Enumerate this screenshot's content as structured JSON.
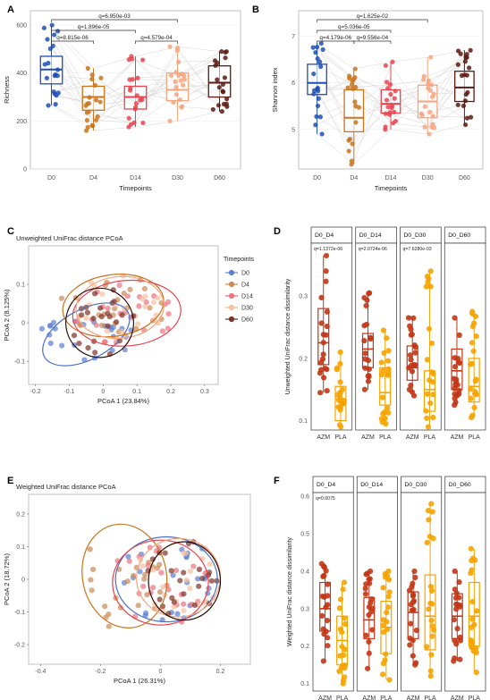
{
  "chart_data": [
    {
      "panel": "A",
      "type": "box",
      "xlabel": "Timepoints",
      "ylabel": "Richness",
      "categories": [
        "D0",
        "D4",
        "D14",
        "D30",
        "D60"
      ],
      "colors": [
        "#1f4fb5",
        "#c9741e",
        "#e8444f",
        "#f5a57e",
        "#5a1a12"
      ],
      "ylim": [
        0,
        660
      ],
      "yticks": [
        0,
        200,
        400,
        600
      ],
      "boxes": [
        {
          "q1": 355,
          "median": 415,
          "q3": 470,
          "min": 265,
          "max": 600
        },
        {
          "q1": 245,
          "median": 300,
          "q3": 345,
          "min": 160,
          "max": 420
        },
        {
          "q1": 250,
          "median": 300,
          "q3": 345,
          "min": 175,
          "max": 470
        },
        {
          "q1": 285,
          "median": 330,
          "q3": 400,
          "min": 200,
          "max": 510
        },
        {
          "q1": 300,
          "median": 360,
          "q3": 430,
          "min": 240,
          "max": 490
        }
      ],
      "comparisons": [
        {
          "label": "q=6.950e-03",
          "from": "D0",
          "to": "D30"
        },
        {
          "label": "q=1.896e-05",
          "from": "D0",
          "to": "D14"
        },
        {
          "label": "q=8.815e-06",
          "from": "D0",
          "to": "D4"
        },
        {
          "label": "q=4.579e-04",
          "from": "D14",
          "to": "D30"
        }
      ]
    },
    {
      "panel": "B",
      "type": "box",
      "xlabel": "Timepoints",
      "ylabel": "Shannon index",
      "categories": [
        "D0",
        "D4",
        "D14",
        "D30",
        "D60"
      ],
      "colors": [
        "#1f4fb5",
        "#c9741e",
        "#e8444f",
        "#f5a57e",
        "#5a1a12"
      ],
      "ylim": [
        4.15,
        7.55
      ],
      "yticks": [
        5,
        6,
        7
      ],
      "boxes": [
        {
          "q1": 5.75,
          "median": 6.0,
          "q3": 6.4,
          "min": 4.9,
          "max": 6.85
        },
        {
          "q1": 4.95,
          "median": 5.25,
          "q3": 5.85,
          "min": 4.25,
          "max": 6.3
        },
        {
          "q1": 5.35,
          "median": 5.55,
          "q3": 5.85,
          "min": 5.0,
          "max": 6.45
        },
        {
          "q1": 5.25,
          "median": 5.6,
          "q3": 5.95,
          "min": 4.9,
          "max": 6.55
        },
        {
          "q1": 5.6,
          "median": 5.9,
          "q3": 6.25,
          "min": 5.1,
          "max": 6.7
        }
      ],
      "comparisons": [
        {
          "label": "q=1.625e-02",
          "from": "D0",
          "to": "D30"
        },
        {
          "label": "q=5.036e-05",
          "from": "D0",
          "to": "D14"
        },
        {
          "label": "q=4.179e-06",
          "from": "D0",
          "to": "D4"
        },
        {
          "label": "q=9.556e-04",
          "from": "D4",
          "to": "D14"
        }
      ]
    },
    {
      "panel": "C",
      "type": "scatter",
      "title": "Unweighted UniFrac distance PCoA",
      "xlabel": "PCoA 1 (23.84%)",
      "ylabel": "PCoA 2 (8.125%)",
      "xticks": [
        -0.2,
        -0.1,
        0.0,
        0.1,
        0.2,
        0.3
      ],
      "yticks": [
        -0.1,
        0.0,
        0.1
      ],
      "xlim": [
        -0.22,
        0.34
      ],
      "ylim": [
        -0.16,
        0.2
      ],
      "legend_title": "Timepoints",
      "legend": [
        "D0",
        "D4",
        "D14",
        "D30",
        "D60"
      ],
      "ellipses": [
        {
          "group": "D0",
          "cx": -0.05,
          "cy": -0.03,
          "rx": 0.14,
          "ry": 0.065,
          "angle": -28
        },
        {
          "group": "D4",
          "cx": 0.03,
          "cy": 0.045,
          "rx": 0.15,
          "ry": 0.08,
          "angle": -8
        },
        {
          "group": "D14",
          "cx": 0.07,
          "cy": 0.025,
          "rx": 0.16,
          "ry": 0.085,
          "angle": -5
        },
        {
          "group": "D30",
          "cx": 0.05,
          "cy": 0.04,
          "rx": 0.13,
          "ry": 0.08,
          "angle": -5
        },
        {
          "group": "D60",
          "cx": -0.01,
          "cy": 0.0,
          "rx": 0.1,
          "ry": 0.09,
          "angle": -10
        }
      ]
    },
    {
      "panel": "D",
      "type": "box",
      "ylabel": "Unweighted UniFrac distance dissimilarity",
      "ylim": [
        0.085,
        0.385
      ],
      "yticks": [
        0.1,
        0.2,
        0.3
      ],
      "facets": [
        {
          "name": "D0_D4",
          "q": "q=1.1372e-06",
          "boxes": [
            {
              "group": "AZM",
              "q1": 0.19,
              "median": 0.225,
              "q3": 0.28,
              "min": 0.145,
              "max": 0.365
            },
            {
              "group": "PLA",
              "q1": 0.1,
              "median": 0.135,
              "q3": 0.155,
              "min": 0.09,
              "max": 0.21
            }
          ]
        },
        {
          "name": "D0_D14",
          "q": "q=2.0724e-06",
          "boxes": [
            {
              "group": "AZM",
              "q1": 0.185,
              "median": 0.215,
              "q3": 0.24,
              "min": 0.15,
              "max": 0.305
            },
            {
              "group": "PLA",
              "q1": 0.125,
              "median": 0.145,
              "q3": 0.185,
              "min": 0.095,
              "max": 0.245
            }
          ]
        },
        {
          "name": "D0_D30",
          "q": "q=7.6280e-03",
          "boxes": [
            {
              "group": "AZM",
              "q1": 0.165,
              "median": 0.185,
              "q3": 0.22,
              "min": 0.14,
              "max": 0.265
            },
            {
              "group": "PLA",
              "q1": 0.115,
              "median": 0.15,
              "q3": 0.18,
              "min": 0.09,
              "max": 0.34
            }
          ]
        },
        {
          "name": "D0_D60",
          "q": "",
          "boxes": [
            {
              "group": "AZM",
              "q1": 0.15,
              "median": 0.18,
              "q3": 0.215,
              "min": 0.125,
              "max": 0.265
            },
            {
              "group": "PLA",
              "q1": 0.13,
              "median": 0.155,
              "q3": 0.2,
              "min": 0.105,
              "max": 0.275
            }
          ]
        }
      ],
      "groups": [
        "AZM",
        "PLA"
      ],
      "colors": [
        "#c23616",
        "#f5a300"
      ]
    },
    {
      "panel": "E",
      "type": "scatter",
      "title": "Weighted UniFrac distance PCoA",
      "xlabel": "PCoA 1 (26.31%)",
      "ylabel": "PCoA 2 (18.72%)",
      "xticks": [
        -0.4,
        -0.2,
        0.0,
        0.2
      ],
      "yticks": [
        -0.2,
        -0.1,
        0.0,
        0.1,
        0.2
      ],
      "xlim": [
        -0.44,
        0.3
      ],
      "ylim": [
        -0.26,
        0.26
      ],
      "ellipses": [
        {
          "group": "D0",
          "cx": 0.02,
          "cy": 0.0,
          "rx": 0.17,
          "ry": 0.13,
          "angle": 0
        },
        {
          "group": "D4",
          "cx": -0.12,
          "cy": 0.01,
          "rx": 0.14,
          "ry": 0.16,
          "angle": -12
        },
        {
          "group": "D14",
          "cx": 0.0,
          "cy": -0.01,
          "rx": 0.16,
          "ry": 0.13,
          "angle": 0
        },
        {
          "group": "D30",
          "cx": 0.06,
          "cy": 0.005,
          "rx": 0.14,
          "ry": 0.12,
          "angle": -5
        },
        {
          "group": "D60",
          "cx": 0.08,
          "cy": -0.005,
          "rx": 0.12,
          "ry": 0.12,
          "angle": 0
        }
      ]
    },
    {
      "panel": "F",
      "type": "box",
      "ylabel": "Weighted UniFrac distance dissimilarity",
      "ylim": [
        0.08,
        0.61
      ],
      "yticks": [
        0.1,
        0.2,
        0.3,
        0.4,
        0.5,
        0.6
      ],
      "facets": [
        {
          "name": "D0_D4",
          "q": "q=0.0075",
          "boxes": [
            {
              "group": "AZM",
              "q1": 0.24,
              "median": 0.3,
              "q3": 0.37,
              "min": 0.16,
              "max": 0.42
            },
            {
              "group": "PLA",
              "q1": 0.15,
              "median": 0.215,
              "q3": 0.28,
              "min": 0.1,
              "max": 0.37
            }
          ]
        },
        {
          "name": "D0_D14",
          "q": "",
          "boxes": [
            {
              "group": "AZM",
              "q1": 0.22,
              "median": 0.27,
              "q3": 0.33,
              "min": 0.14,
              "max": 0.4
            },
            {
              "group": "PLA",
              "q1": 0.18,
              "median": 0.25,
              "q3": 0.32,
              "min": 0.11,
              "max": 0.4
            }
          ]
        },
        {
          "name": "D0_D30",
          "q": "",
          "boxes": [
            {
              "group": "AZM",
              "q1": 0.22,
              "median": 0.29,
              "q3": 0.345,
              "min": 0.15,
              "max": 0.4
            },
            {
              "group": "PLA",
              "q1": 0.19,
              "median": 0.28,
              "q3": 0.39,
              "min": 0.12,
              "max": 0.58
            }
          ]
        },
        {
          "name": "D0_D60",
          "q": "",
          "boxes": [
            {
              "group": "AZM",
              "q1": 0.22,
              "median": 0.28,
              "q3": 0.34,
              "min": 0.16,
              "max": 0.4
            },
            {
              "group": "PLA",
              "q1": 0.2,
              "median": 0.28,
              "q3": 0.37,
              "min": 0.13,
              "max": 0.46
            }
          ]
        }
      ],
      "groups": [
        "AZM",
        "PLA"
      ],
      "colors": [
        "#c23616",
        "#f5a300"
      ]
    }
  ],
  "panel_labels": {
    "A": "A",
    "B": "B",
    "C": "C",
    "D": "D",
    "E": "E",
    "F": "F"
  }
}
